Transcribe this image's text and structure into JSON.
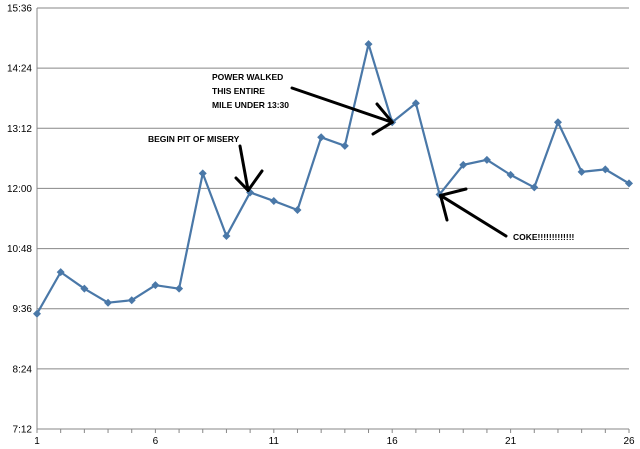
{
  "colors": {
    "series": "#4a78a8",
    "grid": "#878787",
    "arrow": "#000000"
  },
  "chart_data": {
    "type": "line",
    "title": "",
    "xlabel": "",
    "ylabel": "",
    "grid": true,
    "legend": "none",
    "x": [
      1,
      2,
      3,
      4,
      5,
      6,
      7,
      8,
      9,
      10,
      11,
      12,
      13,
      14,
      15,
      16,
      17,
      18,
      19,
      20,
      21,
      22,
      23,
      24,
      25,
      26
    ],
    "values": [
      9.5,
      10.33,
      10.0,
      9.72,
      9.77,
      10.07,
      10.0,
      12.3,
      11.05,
      11.92,
      11.75,
      11.57,
      13.02,
      12.85,
      14.88,
      13.32,
      13.7,
      11.88,
      12.47,
      12.57,
      12.27,
      12.02,
      13.32,
      12.33,
      12.38,
      12.1
    ],
    "xticks": [
      "1",
      "6",
      "11",
      "16",
      "21",
      "26"
    ],
    "yticks": [
      "7:12",
      "8:24",
      "9:36",
      "10:48",
      "12:00",
      "13:12",
      "14:24",
      "15:36"
    ],
    "ylim": [
      7.2,
      15.6
    ],
    "annotations": [
      {
        "lines": [
          "POWER WALKED",
          "THIS ENTIRE",
          "MILE UNDER 13:30"
        ],
        "target_x": 16
      },
      {
        "lines": [
          "BEGIN PIT OF MISERY"
        ],
        "target_x": 10
      },
      {
        "lines": [
          "COKE!!!!!!!!!!!!!"
        ],
        "target_x": 18
      }
    ]
  }
}
